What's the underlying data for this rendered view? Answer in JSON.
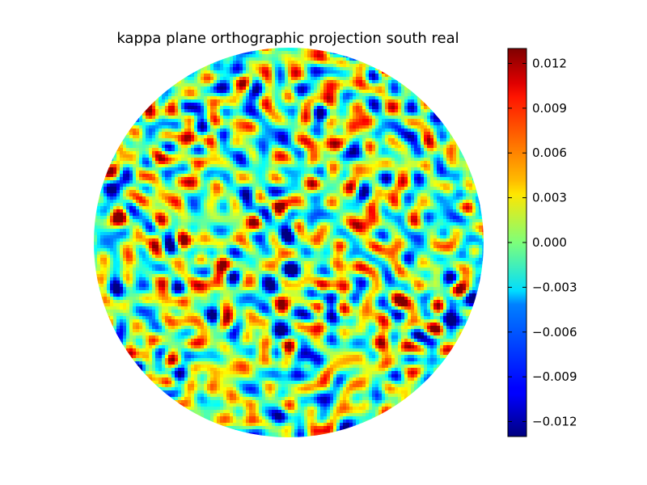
{
  "chart_data": {
    "type": "heatmap",
    "title": "kappa plane orthographic projection south real",
    "projection": "orthographic",
    "colormap": "jet",
    "colorbar": {
      "placement": "right",
      "vmin": -0.013,
      "vmax": 0.013,
      "ticks": [
        {
          "value": 0.012,
          "label": "0.012"
        },
        {
          "value": 0.009,
          "label": "0.009"
        },
        {
          "value": 0.006,
          "label": "0.006"
        },
        {
          "value": 0.003,
          "label": "0.003"
        },
        {
          "value": 0.0,
          "label": "0.000"
        },
        {
          "value": -0.003,
          "label": "−0.003"
        },
        {
          "value": -0.006,
          "label": "−0.006"
        },
        {
          "value": -0.009,
          "label": "−0.009"
        },
        {
          "value": -0.012,
          "label": "−0.012"
        }
      ]
    }
  }
}
